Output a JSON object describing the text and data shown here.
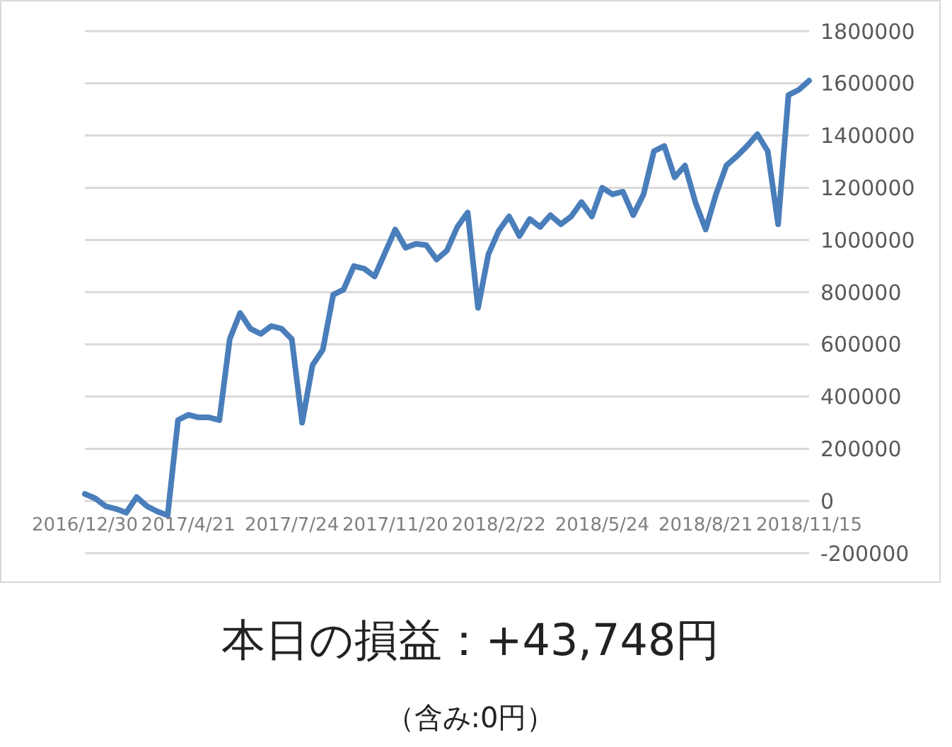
{
  "chart_data": {
    "type": "line",
    "categories": [
      "2016/12/30",
      null,
      null,
      null,
      null,
      null,
      null,
      null,
      null,
      null,
      "2017/4/21",
      null,
      null,
      null,
      null,
      null,
      null,
      null,
      null,
      null,
      "2017/7/24",
      null,
      null,
      null,
      null,
      null,
      null,
      null,
      null,
      null,
      "2017/11/20",
      null,
      null,
      null,
      null,
      null,
      null,
      null,
      null,
      null,
      "2018/2/22",
      null,
      null,
      null,
      null,
      null,
      null,
      null,
      null,
      null,
      "2018/5/24",
      null,
      null,
      null,
      null,
      null,
      null,
      null,
      null,
      null,
      "2018/8/21",
      null,
      null,
      null,
      null,
      null,
      null,
      null,
      null,
      null,
      "2018/11/15"
    ],
    "series": [
      {
        "color": "#4a7ebb",
        "values": [
          27000,
          10000,
          -20000,
          -30000,
          -45000,
          15000,
          -20000,
          -40000,
          -55000,
          310000,
          330000,
          320000,
          320000,
          310000,
          620000,
          720000,
          660000,
          640000,
          670000,
          660000,
          620000,
          300000,
          520000,
          580000,
          790000,
          810000,
          900000,
          890000,
          860000,
          950000,
          1040000,
          970000,
          985000,
          980000,
          925000,
          960000,
          1050000,
          1105000,
          740000,
          945000,
          1035000,
          1090000,
          1015000,
          1080000,
          1050000,
          1095000,
          1060000,
          1090000,
          1145000,
          1090000,
          1200000,
          1175000,
          1185000,
          1095000,
          1175000,
          1340000,
          1360000,
          1240000,
          1285000,
          1145000,
          1040000,
          1175000,
          1285000,
          1320000,
          1360000,
          1405000,
          1340000,
          1060000,
          1555000,
          1575000,
          1610000
        ]
      }
    ],
    "ylim": [
      -200000,
      1800000
    ],
    "yticks": [
      -200000,
      0,
      200000,
      400000,
      600000,
      800000,
      1000000,
      1200000,
      1400000,
      1600000,
      1800000
    ],
    "grid": "y",
    "marker": "none",
    "annotations": [
      "本日の損益：+43,748円",
      "（含み:0円）"
    ]
  }
}
